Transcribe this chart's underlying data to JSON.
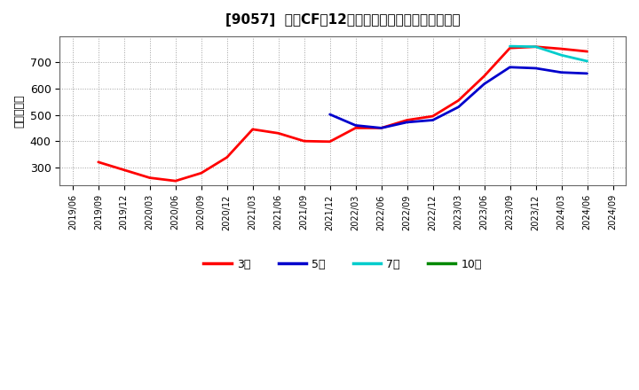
{
  "title": "[9057]  営業CFだ12か月移動合計の標準偏差の推移",
  "ylabel": "（百万円）",
  "background_color": "#ffffff",
  "plot_bg_color": "#ffffff",
  "grid_color": "#aaaaaa",
  "ylim": [
    230,
    800
  ],
  "yticks": [
    300,
    400,
    500,
    600,
    700
  ],
  "series_order": [
    "3年",
    "5年",
    "7年",
    "10年"
  ],
  "series": {
    "3年": {
      "color": "#ff0000",
      "dates": [
        "2019/06",
        "2019/09",
        "2019/12",
        "2020/03",
        "2020/06",
        "2020/09",
        "2020/12",
        "2021/03",
        "2021/06",
        "2021/09",
        "2021/12",
        "2022/03",
        "2022/06",
        "2022/09",
        "2022/12",
        "2023/03",
        "2023/06",
        "2023/09",
        "2023/12",
        "2024/03",
        "2024/06"
      ],
      "values": [
        null,
        320,
        290,
        260,
        248,
        278,
        338,
        445,
        430,
        400,
        398,
        450,
        450,
        480,
        495,
        555,
        648,
        755,
        760,
        752,
        742
      ]
    },
    "5年": {
      "color": "#0000cc",
      "dates": [
        "2021/12",
        "2022/03",
        "2022/06",
        "2022/09",
        "2022/12",
        "2023/03",
        "2023/06",
        "2023/09",
        "2023/12",
        "2024/03",
        "2024/06"
      ],
      "values": [
        502,
        460,
        450,
        472,
        480,
        530,
        618,
        682,
        678,
        662,
        658
      ]
    },
    "7年": {
      "color": "#00cccc",
      "dates": [
        "2023/09",
        "2023/12",
        "2024/03",
        "2024/06"
      ],
      "values": [
        762,
        760,
        728,
        705
      ]
    },
    "10年": {
      "color": "#008800",
      "dates": [],
      "values": []
    }
  },
  "xtick_labels": [
    "2019/06",
    "2019/09",
    "2019/12",
    "2020/03",
    "2020/06",
    "2020/09",
    "2020/12",
    "2021/03",
    "2021/06",
    "2021/09",
    "2021/12",
    "2022/03",
    "2022/06",
    "2022/09",
    "2022/12",
    "2023/03",
    "2023/06",
    "2023/09",
    "2023/12",
    "2024/03",
    "2024/06",
    "2024/09"
  ],
  "legend_entries": [
    "3年",
    "5年",
    "7年",
    "10年"
  ],
  "legend_colors": [
    "#ff0000",
    "#0000cc",
    "#00cccc",
    "#008800"
  ]
}
